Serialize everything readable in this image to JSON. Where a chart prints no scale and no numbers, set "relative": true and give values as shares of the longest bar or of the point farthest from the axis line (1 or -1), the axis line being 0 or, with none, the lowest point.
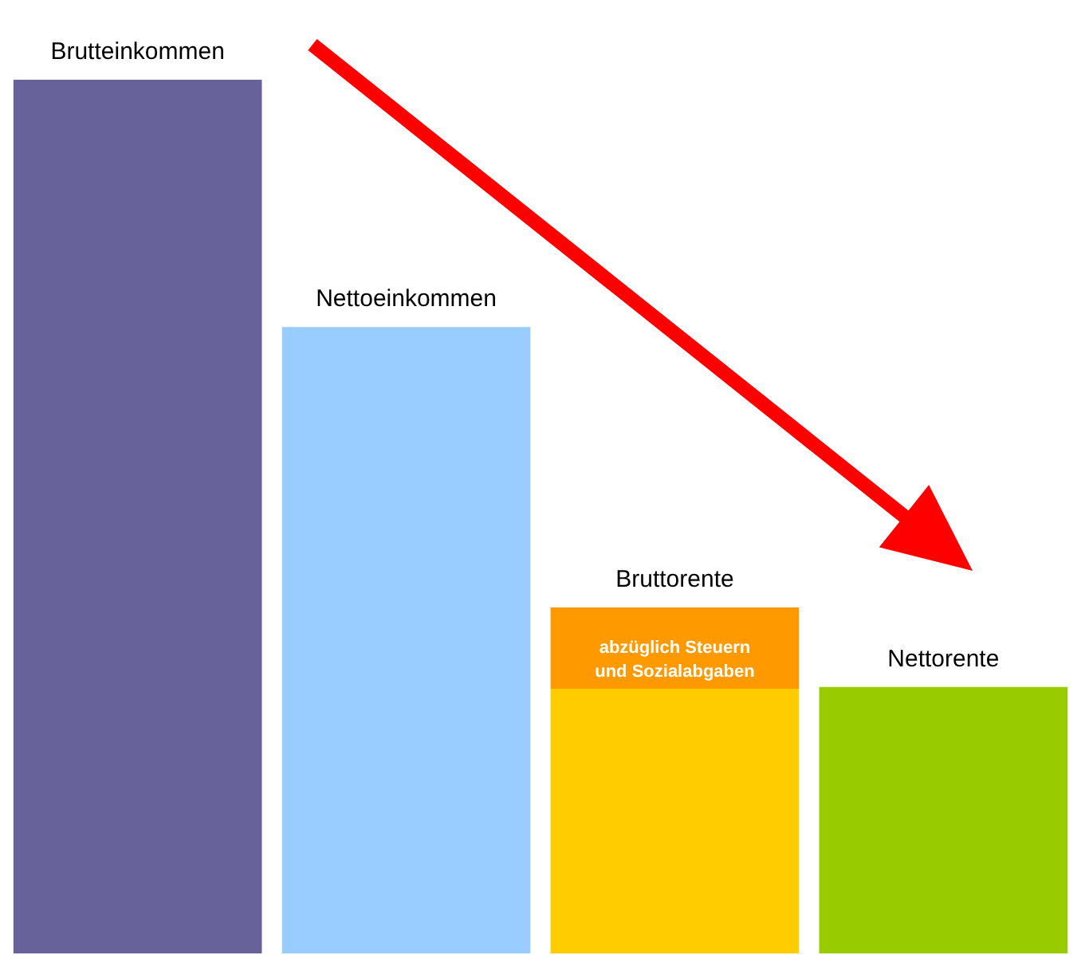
{
  "chart_data": {
    "type": "bar",
    "relative": true,
    "stacked": true,
    "legend": false,
    "categories": [
      "Brutteinkommen",
      "Nettoeinkommen",
      "Bruttorente",
      "Nettorente"
    ],
    "series": [
      {
        "colors": [
          "#67639a",
          "#99ccff",
          "#ffcc00",
          "#99cc00"
        ],
        "values": [
          1,
          0.717,
          0.303,
          0.305
        ]
      },
      {
        "color": "#ff9900",
        "values": [
          null,
          null,
          0.093,
          null
        ]
      }
    ],
    "annotations": [
      "abzüglich Steuern und Sozialabgaben"
    ]
  }
}
